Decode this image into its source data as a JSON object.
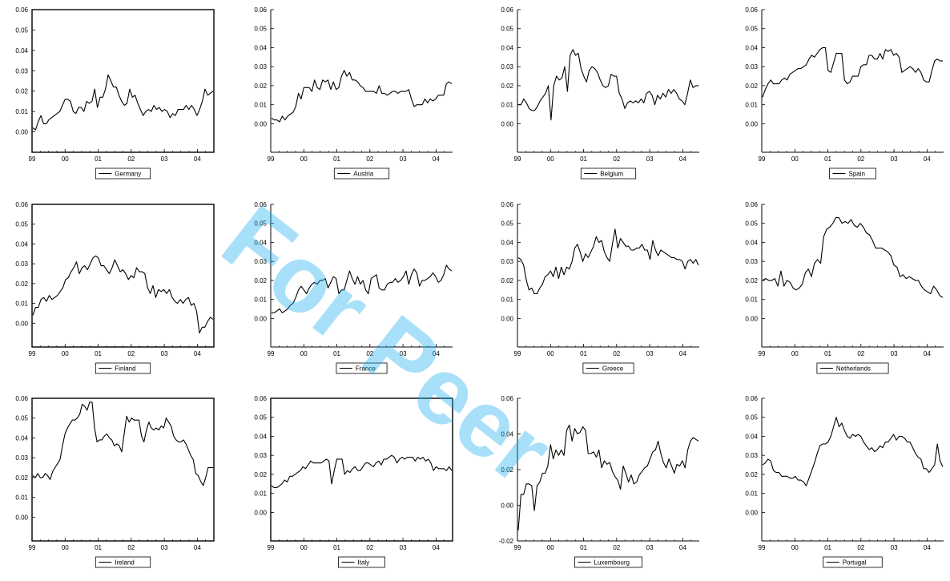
{
  "watermark": "For Peer",
  "x_ticks": [
    "99",
    "00",
    "01",
    "02",
    "03",
    "04"
  ],
  "chart_data": [
    {
      "type": "line",
      "legend": "Germany",
      "ylim": [
        -0.01,
        0.06
      ],
      "yticks": [
        "0.00",
        "0.01",
        "0.02",
        "0.03",
        "0.04",
        "0.05",
        "0.06"
      ],
      "frame": true,
      "values": [
        0.002,
        0.001,
        0.005,
        0.008,
        0.004,
        0.004,
        0.006,
        0.007,
        0.008,
        0.009,
        0.01,
        0.013,
        0.016,
        0.016,
        0.015,
        0.01,
        0.009,
        0.012,
        0.012,
        0.01,
        0.015,
        0.014,
        0.015,
        0.021,
        0.012,
        0.017,
        0.017,
        0.021,
        0.028,
        0.025,
        0.022,
        0.022,
        0.018,
        0.015,
        0.013,
        0.014,
        0.021,
        0.017,
        0.018,
        0.014,
        0.011,
        0.008,
        0.01,
        0.011,
        0.01,
        0.013,
        0.011,
        0.012,
        0.01,
        0.011,
        0.01,
        0.007,
        0.009,
        0.008,
        0.011,
        0.011,
        0.011,
        0.013,
        0.011,
        0.013,
        0.011,
        0.008,
        0.011,
        0.015,
        0.021,
        0.018,
        0.019,
        0.02
      ]
    },
    {
      "type": "line",
      "legend": "Austria",
      "ylim": [
        -0.015,
        0.06
      ],
      "yticks": [
        "0.00",
        "0.01",
        "0.02",
        "0.03",
        "0.04",
        "0.05",
        "0.06"
      ],
      "frame": false,
      "values": [
        0.003,
        0.002,
        0.002,
        0.001,
        0.004,
        0.002,
        0.004,
        0.005,
        0.006,
        0.009,
        0.016,
        0.013,
        0.019,
        0.019,
        0.019,
        0.017,
        0.023,
        0.019,
        0.018,
        0.023,
        0.022,
        0.023,
        0.018,
        0.022,
        0.018,
        0.019,
        0.025,
        0.028,
        0.025,
        0.027,
        0.023,
        0.023,
        0.022,
        0.02,
        0.019,
        0.017,
        0.017,
        0.017,
        0.017,
        0.016,
        0.02,
        0.016,
        0.016,
        0.015,
        0.016,
        0.017,
        0.017,
        0.016,
        0.017,
        0.017,
        0.017,
        0.018,
        0.013,
        0.009,
        0.01,
        0.01,
        0.01,
        0.013,
        0.011,
        0.013,
        0.012,
        0.013,
        0.015,
        0.015,
        0.015,
        0.021,
        0.022,
        0.021
      ]
    },
    {
      "type": "line",
      "legend": "Belgium",
      "ylim": [
        -0.015,
        0.06
      ],
      "yticks": [
        "0.00",
        "0.01",
        "0.02",
        "0.03",
        "0.04",
        "0.05",
        "0.06"
      ],
      "frame": false,
      "values": [
        0.01,
        0.01,
        0.013,
        0.011,
        0.008,
        0.007,
        0.007,
        0.009,
        0.012,
        0.014,
        0.016,
        0.02,
        0.002,
        0.02,
        0.025,
        0.023,
        0.024,
        0.03,
        0.017,
        0.036,
        0.039,
        0.036,
        0.037,
        0.029,
        0.025,
        0.022,
        0.028,
        0.03,
        0.029,
        0.027,
        0.023,
        0.02,
        0.019,
        0.02,
        0.026,
        0.025,
        0.025,
        0.016,
        0.013,
        0.008,
        0.011,
        0.012,
        0.011,
        0.012,
        0.011,
        0.013,
        0.011,
        0.016,
        0.017,
        0.015,
        0.01,
        0.015,
        0.013,
        0.016,
        0.014,
        0.018,
        0.016,
        0.018,
        0.016,
        0.013,
        0.012,
        0.01,
        0.016,
        0.023,
        0.019,
        0.02,
        0.02
      ]
    },
    {
      "type": "line",
      "legend": "Spain",
      "ylim": [
        -0.015,
        0.06
      ],
      "yticks": [
        "0.00",
        "0.01",
        "0.02",
        "0.03",
        "0.04",
        "0.05",
        "0.06"
      ],
      "frame": false,
      "values": [
        0.014,
        0.018,
        0.021,
        0.023,
        0.021,
        0.021,
        0.021,
        0.023,
        0.024,
        0.023,
        0.026,
        0.027,
        0.028,
        0.029,
        0.029,
        0.03,
        0.031,
        0.034,
        0.036,
        0.035,
        0.037,
        0.039,
        0.04,
        0.04,
        0.028,
        0.027,
        0.032,
        0.037,
        0.037,
        0.037,
        0.023,
        0.021,
        0.022,
        0.025,
        0.025,
        0.025,
        0.03,
        0.031,
        0.031,
        0.036,
        0.036,
        0.034,
        0.034,
        0.037,
        0.034,
        0.039,
        0.038,
        0.039,
        0.036,
        0.037,
        0.035,
        0.027,
        0.028,
        0.029,
        0.03,
        0.029,
        0.027,
        0.029,
        0.027,
        0.023,
        0.022,
        0.022,
        0.028,
        0.033,
        0.034,
        0.033,
        0.033
      ]
    },
    {
      "type": "line",
      "legend": "Finland",
      "ylim": [
        -0.012,
        0.06
      ],
      "yticks": [
        "0.00",
        "0.01",
        "0.02",
        "0.03",
        "0.04",
        "0.05",
        "0.06"
      ],
      "frame": true,
      "values": [
        0.004,
        0.008,
        0.008,
        0.012,
        0.013,
        0.011,
        0.014,
        0.012,
        0.013,
        0.014,
        0.016,
        0.018,
        0.022,
        0.023,
        0.026,
        0.028,
        0.031,
        0.025,
        0.028,
        0.029,
        0.027,
        0.03,
        0.033,
        0.034,
        0.033,
        0.029,
        0.029,
        0.027,
        0.025,
        0.028,
        0.032,
        0.029,
        0.026,
        0.027,
        0.025,
        0.022,
        0.024,
        0.023,
        0.028,
        0.026,
        0.026,
        0.025,
        0.018,
        0.015,
        0.019,
        0.013,
        0.017,
        0.016,
        0.017,
        0.015,
        0.017,
        0.013,
        0.011,
        0.01,
        0.012,
        0.01,
        0.012,
        0.013,
        0.009,
        0.01,
        0.006,
        -0.005,
        -0.002,
        -0.002,
        0.001,
        0.003,
        0.002
      ]
    },
    {
      "type": "line",
      "legend": "France",
      "ylim": [
        -0.015,
        0.06
      ],
      "yticks": [
        "0.00",
        "0.01",
        "0.02",
        "0.03",
        "0.04",
        "0.05",
        "0.06"
      ],
      "frame": false,
      "values": [
        0.003,
        0.003,
        0.004,
        0.005,
        0.003,
        0.004,
        0.005,
        0.007,
        0.008,
        0.011,
        0.015,
        0.017,
        0.015,
        0.013,
        0.016,
        0.018,
        0.019,
        0.018,
        0.02,
        0.02,
        0.021,
        0.016,
        0.019,
        0.022,
        0.021,
        0.013,
        0.015,
        0.015,
        0.02,
        0.025,
        0.021,
        0.018,
        0.022,
        0.018,
        0.02,
        0.015,
        0.013,
        0.021,
        0.022,
        0.023,
        0.016,
        0.015,
        0.015,
        0.018,
        0.019,
        0.019,
        0.021,
        0.019,
        0.02,
        0.022,
        0.025,
        0.018,
        0.023,
        0.026,
        0.024,
        0.017,
        0.02,
        0.02,
        0.021,
        0.022,
        0.024,
        0.022,
        0.019,
        0.02,
        0.023,
        0.028,
        0.026,
        0.025
      ]
    },
    {
      "type": "line",
      "legend": "Greece",
      "ylim": [
        -0.015,
        0.06
      ],
      "yticks": [
        "0.00",
        "0.01",
        "0.02",
        "0.03",
        "0.04",
        "0.05",
        "0.06"
      ],
      "frame": false,
      "values": [
        0.032,
        0.031,
        0.028,
        0.02,
        0.015,
        0.016,
        0.013,
        0.013,
        0.016,
        0.018,
        0.022,
        0.023,
        0.025,
        0.022,
        0.027,
        0.021,
        0.027,
        0.023,
        0.027,
        0.026,
        0.03,
        0.037,
        0.039,
        0.035,
        0.03,
        0.034,
        0.032,
        0.035,
        0.038,
        0.043,
        0.04,
        0.041,
        0.035,
        0.032,
        0.03,
        0.039,
        0.047,
        0.037,
        0.042,
        0.04,
        0.038,
        0.038,
        0.036,
        0.036,
        0.037,
        0.037,
        0.039,
        0.036,
        0.036,
        0.031,
        0.041,
        0.036,
        0.033,
        0.036,
        0.035,
        0.034,
        0.033,
        0.032,
        0.032,
        0.031,
        0.031,
        0.03,
        0.026,
        0.03,
        0.031,
        0.029,
        0.031,
        0.028
      ]
    },
    {
      "type": "line",
      "legend": "Netherlands",
      "ylim": [
        -0.015,
        0.06
      ],
      "yticks": [
        "0.00",
        "0.01",
        "0.02",
        "0.03",
        "0.04",
        "0.05",
        "0.06"
      ],
      "frame": false,
      "values": [
        0.02,
        0.021,
        0.02,
        0.02,
        0.021,
        0.017,
        0.025,
        0.017,
        0.02,
        0.019,
        0.016,
        0.015,
        0.016,
        0.018,
        0.024,
        0.026,
        0.022,
        0.029,
        0.031,
        0.029,
        0.043,
        0.047,
        0.048,
        0.05,
        0.053,
        0.053,
        0.05,
        0.051,
        0.05,
        0.052,
        0.049,
        0.048,
        0.05,
        0.048,
        0.045,
        0.044,
        0.041,
        0.037,
        0.037,
        0.037,
        0.036,
        0.035,
        0.033,
        0.028,
        0.027,
        0.022,
        0.023,
        0.021,
        0.022,
        0.021,
        0.02,
        0.02,
        0.017,
        0.015,
        0.014,
        0.013,
        0.017,
        0.015,
        0.012,
        0.011
      ]
    },
    {
      "type": "line",
      "legend": "Ireland",
      "ylim": [
        -0.012,
        0.06
      ],
      "yticks": [
        "0.00",
        "0.01",
        "0.02",
        "0.03",
        "0.04",
        "0.05",
        "0.06"
      ],
      "frame": true,
      "values": [
        0.021,
        0.02,
        0.022,
        0.02,
        0.02,
        0.022,
        0.021,
        0.019,
        0.023,
        0.025,
        0.027,
        0.029,
        0.036,
        0.042,
        0.045,
        0.047,
        0.049,
        0.049,
        0.05,
        0.052,
        0.057,
        0.056,
        0.054,
        0.058,
        0.058,
        0.045,
        0.038,
        0.039,
        0.039,
        0.041,
        0.042,
        0.04,
        0.039,
        0.036,
        0.037,
        0.036,
        0.033,
        0.042,
        0.051,
        0.048,
        0.05,
        0.049,
        0.049,
        0.049,
        0.041,
        0.038,
        0.044,
        0.048,
        0.045,
        0.044,
        0.045,
        0.044,
        0.046,
        0.045,
        0.05,
        0.048,
        0.046,
        0.041,
        0.039,
        0.038,
        0.038,
        0.039,
        0.037,
        0.034,
        0.031,
        0.029,
        0.022,
        0.021,
        0.018,
        0.016,
        0.02,
        0.025,
        0.025,
        0.025
      ]
    },
    {
      "type": "line",
      "legend": "Italy",
      "ylim": [
        -0.015,
        0.06
      ],
      "yticks": [
        "0.00",
        "0.01",
        "0.02",
        "0.03",
        "0.04",
        "0.05",
        "0.06"
      ],
      "frame": true,
      "values": [
        0.014,
        0.013,
        0.013,
        0.014,
        0.015,
        0.017,
        0.016,
        0.019,
        0.019,
        0.02,
        0.021,
        0.022,
        0.024,
        0.023,
        0.025,
        0.027,
        0.026,
        0.026,
        0.026,
        0.026,
        0.027,
        0.028,
        0.027,
        0.015,
        0.022,
        0.028,
        0.028,
        0.028,
        0.02,
        0.022,
        0.021,
        0.023,
        0.024,
        0.022,
        0.022,
        0.024,
        0.026,
        0.026,
        0.025,
        0.024,
        0.026,
        0.027,
        0.025,
        0.028,
        0.028,
        0.029,
        0.03,
        0.029,
        0.026,
        0.028,
        0.029,
        0.028,
        0.029,
        0.029,
        0.029,
        0.027,
        0.029,
        0.028,
        0.029,
        0.027,
        0.028,
        0.026,
        0.022,
        0.024,
        0.023,
        0.023,
        0.023,
        0.022,
        0.024,
        0.022
      ]
    },
    {
      "type": "line",
      "legend": "Luxembourg",
      "ylim": [
        -0.02,
        0.06
      ],
      "yticks": [
        "-0.02",
        "0.00",
        "0.02",
        "0.04",
        "0.06"
      ],
      "frame": false,
      "values": [
        -0.014,
        0.006,
        0.006,
        0.012,
        0.012,
        0.011,
        -0.003,
        0.011,
        0.013,
        0.018,
        0.018,
        0.022,
        0.034,
        0.026,
        0.031,
        0.028,
        0.031,
        0.028,
        0.042,
        0.045,
        0.036,
        0.043,
        0.04,
        0.041,
        0.044,
        0.042,
        0.029,
        0.029,
        0.03,
        0.027,
        0.031,
        0.021,
        0.025,
        0.023,
        0.024,
        0.019,
        0.016,
        0.014,
        0.009,
        0.022,
        0.018,
        0.013,
        0.017,
        0.012,
        0.013,
        0.017,
        0.019,
        0.021,
        0.022,
        0.026,
        0.03,
        0.031,
        0.036,
        0.029,
        0.024,
        0.021,
        0.026,
        0.022,
        0.018,
        0.023,
        0.022,
        0.025,
        0.021,
        0.031,
        0.036,
        0.038,
        0.037,
        0.036
      ]
    },
    {
      "type": "line",
      "legend": "Portugal",
      "ylim": [
        -0.015,
        0.06
      ],
      "yticks": [
        "0.00",
        "0.01",
        "0.02",
        "0.03",
        "0.04",
        "0.05",
        "0.06"
      ],
      "frame": false,
      "values": [
        0.025,
        0.026,
        0.028,
        0.027,
        0.022,
        0.021,
        0.021,
        0.019,
        0.019,
        0.019,
        0.018,
        0.018,
        0.019,
        0.017,
        0.017,
        0.016,
        0.014,
        0.018,
        0.022,
        0.026,
        0.031,
        0.035,
        0.036,
        0.036,
        0.037,
        0.04,
        0.045,
        0.05,
        0.045,
        0.047,
        0.043,
        0.04,
        0.039,
        0.041,
        0.04,
        0.041,
        0.04,
        0.037,
        0.035,
        0.033,
        0.034,
        0.032,
        0.033,
        0.035,
        0.034,
        0.037,
        0.037,
        0.039,
        0.041,
        0.038,
        0.04,
        0.04,
        0.039,
        0.037,
        0.037,
        0.034,
        0.031,
        0.029,
        0.028,
        0.023,
        0.023,
        0.021,
        0.023,
        0.025,
        0.036,
        0.027,
        0.024
      ]
    }
  ]
}
